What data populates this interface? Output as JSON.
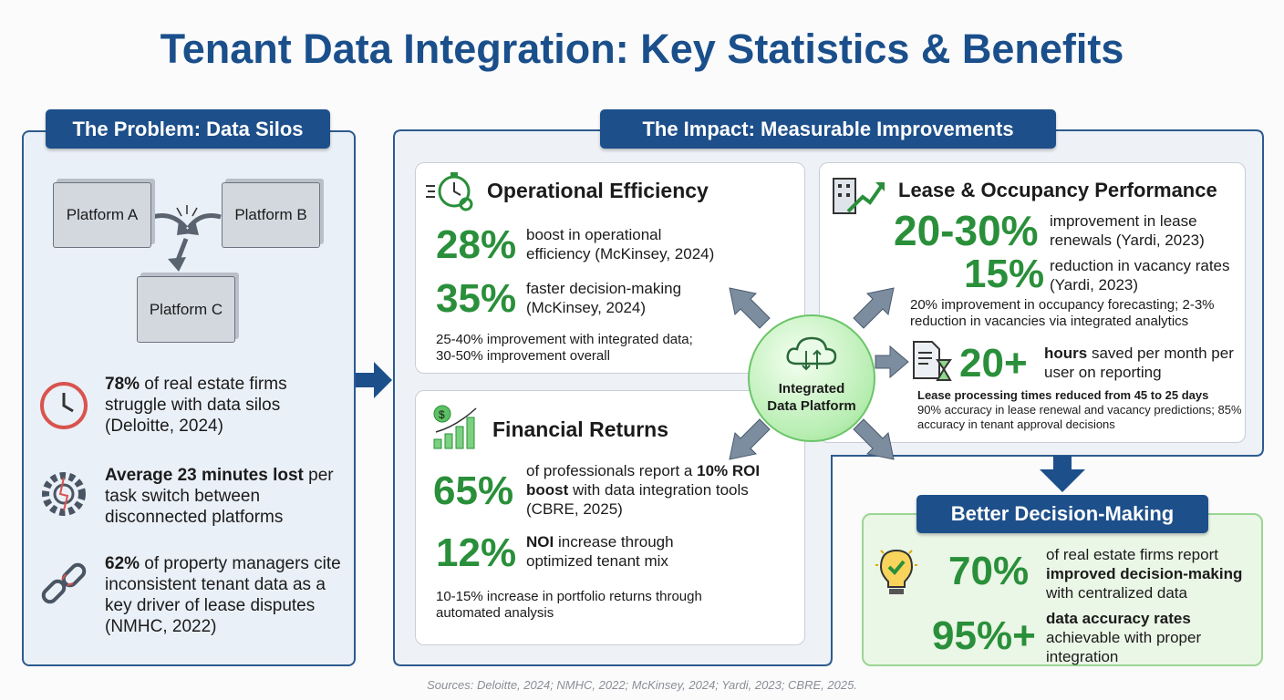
{
  "title": "Tenant Data Integration: Key Statistics & Benefits",
  "problem": {
    "header": "The Problem: Data Silos",
    "platforms": [
      "Platform A",
      "Platform B",
      "Platform C"
    ],
    "stats": [
      {
        "icon": "clock-alert-icon",
        "bold": "78%",
        "text": " of real estate firms struggle with data silos (Deloitte, 2024)"
      },
      {
        "icon": "broken-gear-icon",
        "bold": "Average 23 minutes lost",
        "text": " per task switch between disconnected platforms"
      },
      {
        "icon": "broken-chain-icon",
        "bold": "62%",
        "text": " of property managers cite inconsistent tenant data as a key driver of lease disputes (NMHC, 2022)"
      }
    ]
  },
  "impact": {
    "header": "The Impact: Measurable Improvements",
    "center": "Integrated Data Platform",
    "operational": {
      "title": "Operational Efficiency",
      "stats": [
        {
          "value": "28%",
          "text": "boost in operational efficiency (McKinsey, 2024)"
        },
        {
          "value": "35%",
          "text": "faster decision-making (McKinsey, 2024)"
        }
      ],
      "note": "25-40% improvement with integrated data; 30-50% improvement overall"
    },
    "financial": {
      "title": "Financial Returns",
      "stat1": {
        "value": "65%",
        "pre": "of professionals report a ",
        "bold1": "10% ROI boost",
        "post": " with data integration tools (CBRE, 2025)"
      },
      "stat2": {
        "value": "12%",
        "bold": "NOI",
        "text": " increase through optimized tenant mix"
      },
      "note": "10-15% increase in portfolio returns through automated analysis"
    },
    "lease": {
      "title": "Lease & Occupancy Performance",
      "stats": [
        {
          "value": "20-30%",
          "text": "improvement in lease renewals (Yardi, 2023)"
        },
        {
          "value": "15%",
          "text": "reduction in vacancy rates (Yardi, 2023)"
        }
      ],
      "note": "20% improvement in occupancy forecasting; 2-3% reduction in vacancies via integrated analytics",
      "hours": {
        "value": "20+",
        "bold": "hours",
        "text": " saved per month per user on reporting"
      },
      "note_bold": "Lease processing times reduced from 45 to 25 days",
      "note2": "90% accuracy in lease renewal and vacancy predictions; 85% accuracy in tenant approval decisions"
    }
  },
  "better": {
    "header": "Better Decision-Making",
    "stat1": {
      "value": "70%",
      "pre": "of real estate firms report ",
      "bold": "improved decision-making",
      "post": " with centralized data"
    },
    "stat2": {
      "value": "95%+",
      "bold": "data accuracy rates",
      "post": " achievable with proper integration"
    }
  },
  "sources": "Sources: Deloitte, 2024; NMHC, 2022; McKinsey, 2024; Yardi, 2023; CBRE, 2025.",
  "colors": {
    "navy": "#1d4f8a",
    "green": "#2a8f3a",
    "panel": "#eaf0f7",
    "better_bg": "#eaf6e6"
  }
}
